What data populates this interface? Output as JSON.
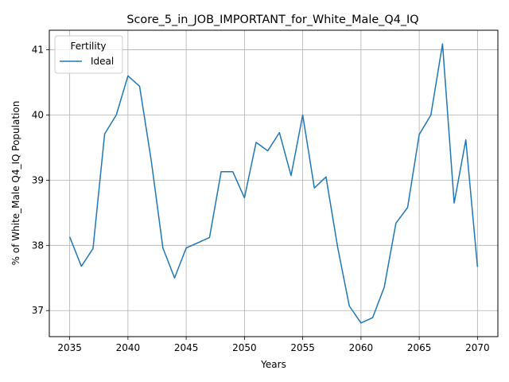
{
  "chart_data": {
    "type": "line",
    "title": "Score_5_in_JOB_IMPORTANT_for_White_Male_Q4_IQ",
    "xlabel": "Years",
    "ylabel": "% of White_Male Q4_IQ Population",
    "xlim": [
      2033.25,
      2071.75
    ],
    "ylim": [
      36.6,
      41.3
    ],
    "xticks": [
      2035,
      2040,
      2045,
      2050,
      2055,
      2060,
      2065,
      2070
    ],
    "yticks": [
      37,
      38,
      39,
      40,
      41
    ],
    "grid": true,
    "legend": {
      "title": "Fertility",
      "placement": "top-left"
    },
    "series": [
      {
        "name": "Ideal",
        "color": "#1f77b4",
        "x": [
          2035,
          2036,
          2037,
          2038,
          2039,
          2040,
          2041,
          2042,
          2043,
          2044,
          2045,
          2046,
          2047,
          2048,
          2049,
          2050,
          2051,
          2052,
          2053,
          2054,
          2055,
          2056,
          2057,
          2058,
          2059,
          2060,
          2061,
          2062,
          2063,
          2064,
          2065,
          2066,
          2067,
          2068,
          2069,
          2070
        ],
        "y": [
          38.13,
          37.68,
          37.95,
          39.71,
          40.0,
          40.6,
          40.44,
          39.3,
          37.96,
          37.5,
          37.96,
          38.04,
          38.12,
          39.13,
          39.13,
          38.73,
          39.58,
          39.45,
          39.73,
          39.07,
          40.0,
          38.88,
          39.05,
          37.97,
          37.07,
          36.81,
          36.89,
          37.36,
          38.34,
          38.58,
          39.7,
          40.0,
          41.09,
          38.65,
          39.62,
          37.67
        ]
      }
    ]
  }
}
